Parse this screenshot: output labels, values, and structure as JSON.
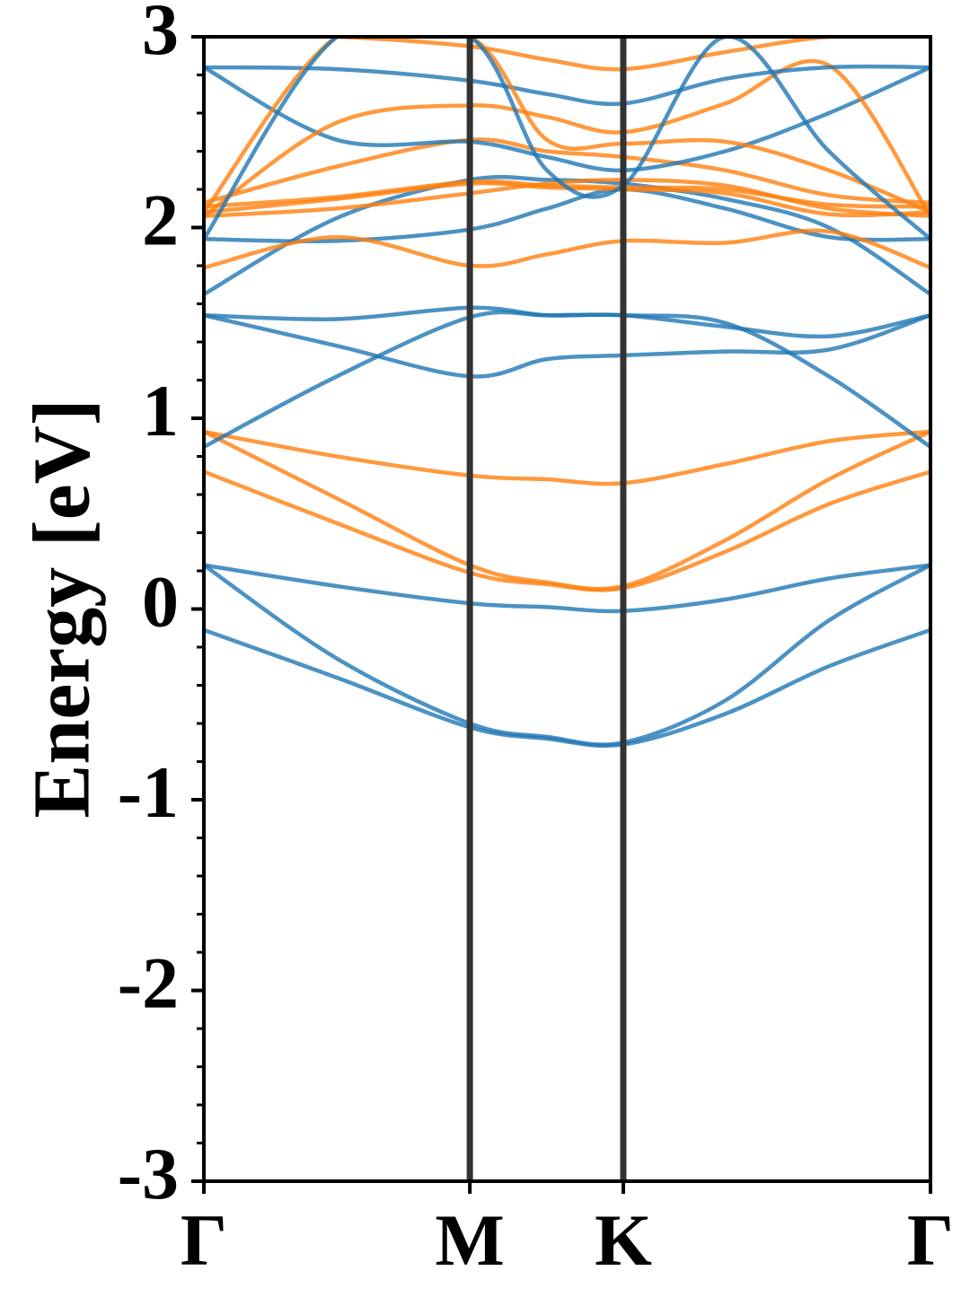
{
  "chart_data": {
    "type": "line",
    "title": "",
    "xlabel": "",
    "ylabel": "Energy [eV]",
    "ylim": [
      -3,
      3
    ],
    "yticks": [
      {
        "value": 3,
        "label": "3"
      },
      {
        "value": 2,
        "label": "2"
      },
      {
        "value": 1,
        "label": "1"
      },
      {
        "value": 0,
        "label": "0"
      },
      {
        "value": -1,
        "label": "-1"
      },
      {
        "value": -2,
        "label": "-2"
      },
      {
        "value": -3,
        "label": "-3"
      }
    ],
    "kpoints": [
      {
        "label": "Γ",
        "position": 0
      },
      {
        "label": "M",
        "position": 1
      },
      {
        "label": "K",
        "position": 1.577
      },
      {
        "label": "Γ",
        "position": 2.732
      }
    ],
    "grid": false,
    "colors": {
      "blue": "#1f77b4",
      "orange": "#ff7f0e",
      "vline": "#333333"
    },
    "x": [
      0,
      0.5,
      1,
      1.29,
      1.577,
      1.96,
      2.35,
      2.732
    ],
    "series": [
      {
        "color": "blue",
        "values": [
          -0.11,
          -0.36,
          -0.62,
          -0.68,
          -0.71,
          -0.55,
          -0.3,
          -0.11
        ]
      },
      {
        "color": "blue",
        "values": [
          0.23,
          -0.26,
          -0.6,
          -0.67,
          -0.7,
          -0.48,
          -0.06,
          0.23
        ]
      },
      {
        "color": "blue",
        "values": [
          0.23,
          0.12,
          0.03,
          0.01,
          -0.01,
          0.05,
          0.16,
          0.23
        ]
      },
      {
        "color": "orange",
        "values": [
          0.72,
          0.45,
          0.19,
          0.13,
          0.11,
          0.3,
          0.55,
          0.72
        ]
      },
      {
        "color": "orange",
        "values": [
          0.93,
          0.58,
          0.23,
          0.14,
          0.12,
          0.36,
          0.68,
          0.93
        ]
      },
      {
        "color": "orange",
        "values": [
          0.93,
          0.8,
          0.7,
          0.68,
          0.66,
          0.76,
          0.88,
          0.93
        ]
      },
      {
        "color": "blue",
        "values": [
          0.85,
          1.22,
          1.53,
          1.54,
          1.54,
          1.5,
          1.22,
          0.85
        ]
      },
      {
        "color": "blue",
        "values": [
          1.54,
          1.52,
          1.58,
          1.54,
          1.54,
          1.48,
          1.43,
          1.54
        ]
      },
      {
        "color": "blue",
        "values": [
          1.54,
          1.38,
          1.22,
          1.31,
          1.33,
          1.35,
          1.36,
          1.54
        ]
      },
      {
        "color": "blue",
        "values": [
          1.65,
          2.05,
          2.25,
          2.25,
          2.23,
          2.15,
          2.0,
          1.65
        ]
      },
      {
        "color": "blue",
        "values": [
          1.94,
          1.93,
          1.99,
          2.1,
          2.2,
          2.1,
          1.95,
          1.94
        ]
      },
      {
        "color": "orange",
        "values": [
          1.79,
          1.95,
          1.8,
          1.86,
          1.93,
          1.92,
          1.98,
          1.79
        ]
      },
      {
        "color": "orange",
        "values": [
          2.06,
          2.1,
          2.18,
          2.23,
          2.25,
          2.22,
          2.1,
          2.06
        ]
      },
      {
        "color": "orange",
        "values": [
          2.08,
          2.15,
          2.23,
          2.21,
          2.2,
          2.18,
          2.07,
          2.08
        ]
      },
      {
        "color": "orange",
        "values": [
          2.11,
          2.16,
          2.24,
          2.22,
          2.21,
          2.2,
          2.12,
          2.11
        ]
      },
      {
        "color": "orange",
        "values": [
          2.13,
          2.32,
          2.46,
          2.4,
          2.37,
          2.3,
          2.17,
          2.13
        ]
      },
      {
        "color": "blue",
        "values": [
          2.84,
          2.46,
          2.45,
          2.37,
          2.3,
          2.4,
          2.6,
          2.84
        ]
      },
      {
        "color": "orange",
        "values": [
          2.06,
          2.55,
          2.64,
          2.58,
          2.5,
          2.65,
          2.85,
          2.06
        ]
      },
      {
        "color": "blue",
        "values": [
          2.84,
          2.83,
          2.77,
          2.7,
          2.65,
          2.78,
          2.84,
          2.84
        ]
      },
      {
        "color": "orange",
        "values": [
          3.0,
          3.0,
          2.95,
          2.88,
          2.83,
          2.92,
          3.0,
          3.0
        ]
      },
      {
        "color": "orange",
        "values": [
          2.08,
          3.0,
          3.0,
          2.46,
          2.44,
          2.45,
          2.3,
          2.08
        ]
      },
      {
        "color": "blue",
        "values": [
          1.94,
          3.0,
          3.0,
          2.3,
          2.22,
          3.0,
          2.4,
          1.94
        ]
      }
    ]
  }
}
